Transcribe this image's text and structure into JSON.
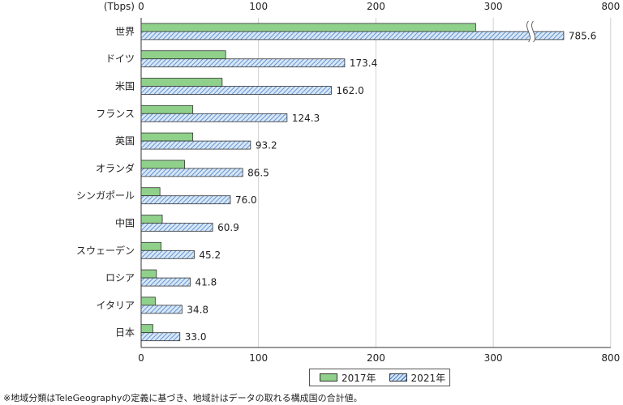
{
  "chart_data": {
    "type": "bar",
    "orientation": "horizontal",
    "unit_label": "(Tbps)",
    "x_ticks": [
      0,
      100,
      200,
      300,
      800
    ],
    "x_range": [
      0,
      400
    ],
    "axis_break": {
      "at": 330,
      "resumes_at": 800
    },
    "categories": [
      "世界",
      "ドイツ",
      "米国",
      "フランス",
      "英国",
      "オランダ",
      "シンガポール",
      "中国",
      "スウェーデン",
      "ロシア",
      "イタリア",
      "日本"
    ],
    "series": [
      {
        "name": "2017年",
        "style": "solid",
        "color": "#8fd08a",
        "values": [
          285,
          72,
          69,
          44,
          44,
          37,
          16,
          18,
          17,
          13,
          12,
          10
        ]
      },
      {
        "name": "2021年",
        "style": "hatched",
        "color": "#4c7fc6",
        "values": [
          785.6,
          173.4,
          162.0,
          124.3,
          93.2,
          86.5,
          76.0,
          60.9,
          45.2,
          41.8,
          34.8,
          33.0
        ],
        "labels": [
          "785.6",
          "173.4",
          "162.0",
          "124.3",
          "93.2",
          "86.5",
          "76.0",
          "60.9",
          "45.2",
          "41.8",
          "34.8",
          "33.0"
        ]
      }
    ],
    "grid": true,
    "legend_position": "bottom-center"
  },
  "footnote": "※地域分類はTeleGeographyの定義に基づき、地域計はデータの取れる構成国の合計値。"
}
